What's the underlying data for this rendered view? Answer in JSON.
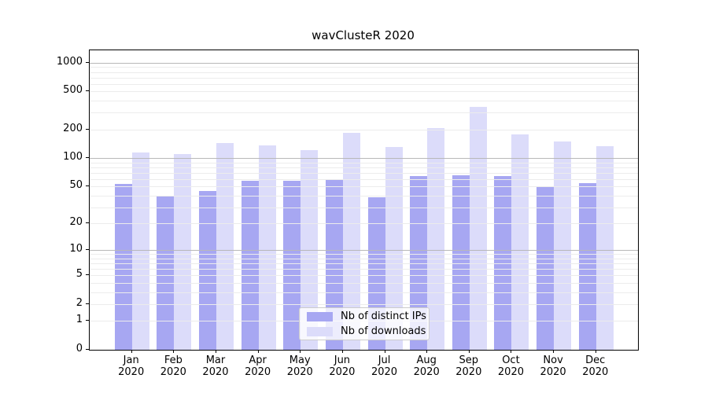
{
  "title": "wavClusteR 2020",
  "chart_data": {
    "type": "bar",
    "title": "wavClusteR 2020",
    "categories": [
      "Jan",
      "Feb",
      "Mar",
      "Apr",
      "May",
      "Jun",
      "Jul",
      "Aug",
      "Sep",
      "Oct",
      "Nov",
      "Dec"
    ],
    "category_year": "2020",
    "series": [
      {
        "name": "Nb of distinct IPs",
        "color": "#a7a7f2",
        "values": [
          53,
          39,
          45,
          57,
          57,
          60,
          38,
          64,
          66,
          64,
          50,
          54
        ]
      },
      {
        "name": "Nb of downloads",
        "color": "#dcdcfa",
        "values": [
          115,
          111,
          144,
          135,
          121,
          183,
          130,
          207,
          346,
          177,
          149,
          133
        ]
      }
    ],
    "xlabel": "",
    "ylabel": "",
    "y_scale": "log10(1+v)",
    "ylim": [
      0,
      1350
    ],
    "y_ticks": [
      0,
      1,
      2,
      5,
      10,
      20,
      50,
      100,
      200,
      500,
      1000
    ],
    "grid": {
      "minor_values": [
        1,
        2,
        3,
        4,
        5,
        6,
        7,
        8,
        9,
        20,
        30,
        40,
        50,
        60,
        70,
        80,
        90,
        200,
        300,
        400,
        500,
        600,
        700,
        800,
        900
      ],
      "major_values": [
        10,
        100,
        1000
      ],
      "minor_color": "#ececec",
      "major_color": "#b8b8b8"
    },
    "legend": {
      "position": "bottom-center",
      "labels": [
        "Nb of distinct IPs",
        "Nb of downloads"
      ]
    }
  }
}
